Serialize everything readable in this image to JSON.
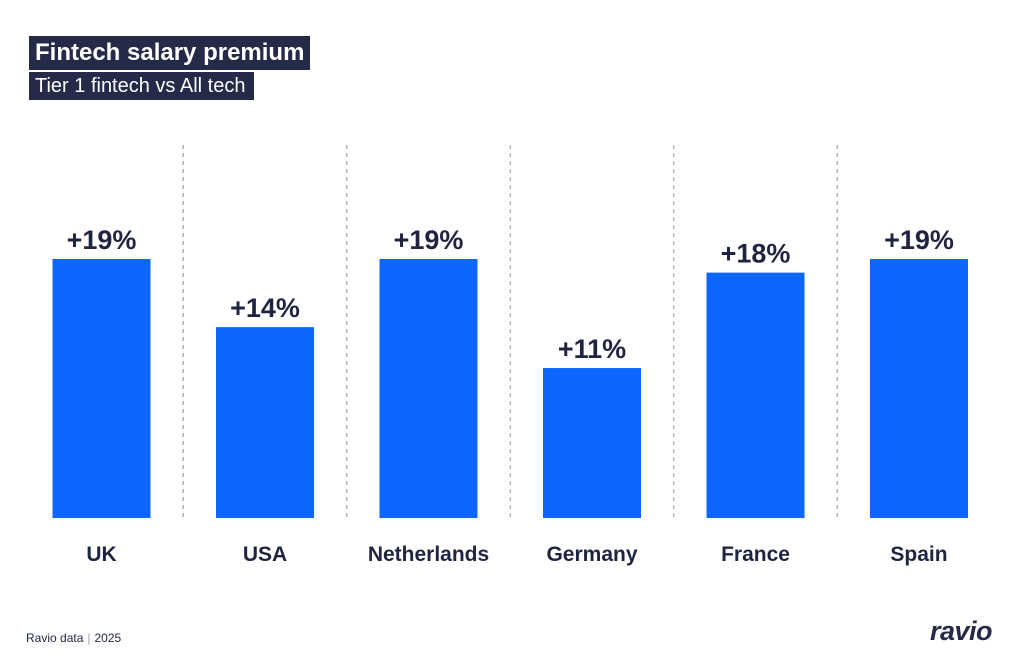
{
  "header": {
    "title": "Fintech salary premium",
    "subtitle": "Tier 1 fintech vs All tech"
  },
  "footer": {
    "source": "Ravio data",
    "year": "2025",
    "logo": "ravio"
  },
  "colors": {
    "bar": "#0c66ff",
    "title_bg": "#242a48",
    "text": "#1f2440",
    "divider": "#8a93a8"
  },
  "chart_data": {
    "type": "bar",
    "categories": [
      "UK",
      "USA",
      "Netherlands",
      "Germany",
      "France",
      "Spain"
    ],
    "values": [
      19,
      14,
      19,
      11,
      18,
      19
    ],
    "value_labels": [
      "+19%",
      "+14%",
      "+19%",
      "+11%",
      "+18%",
      "+19%"
    ],
    "title": "Fintech salary premium",
    "subtitle": "Tier 1 fintech vs All tech",
    "unit": "%",
    "ylim": [
      0,
      19
    ],
    "grid": false,
    "legend": "none"
  }
}
